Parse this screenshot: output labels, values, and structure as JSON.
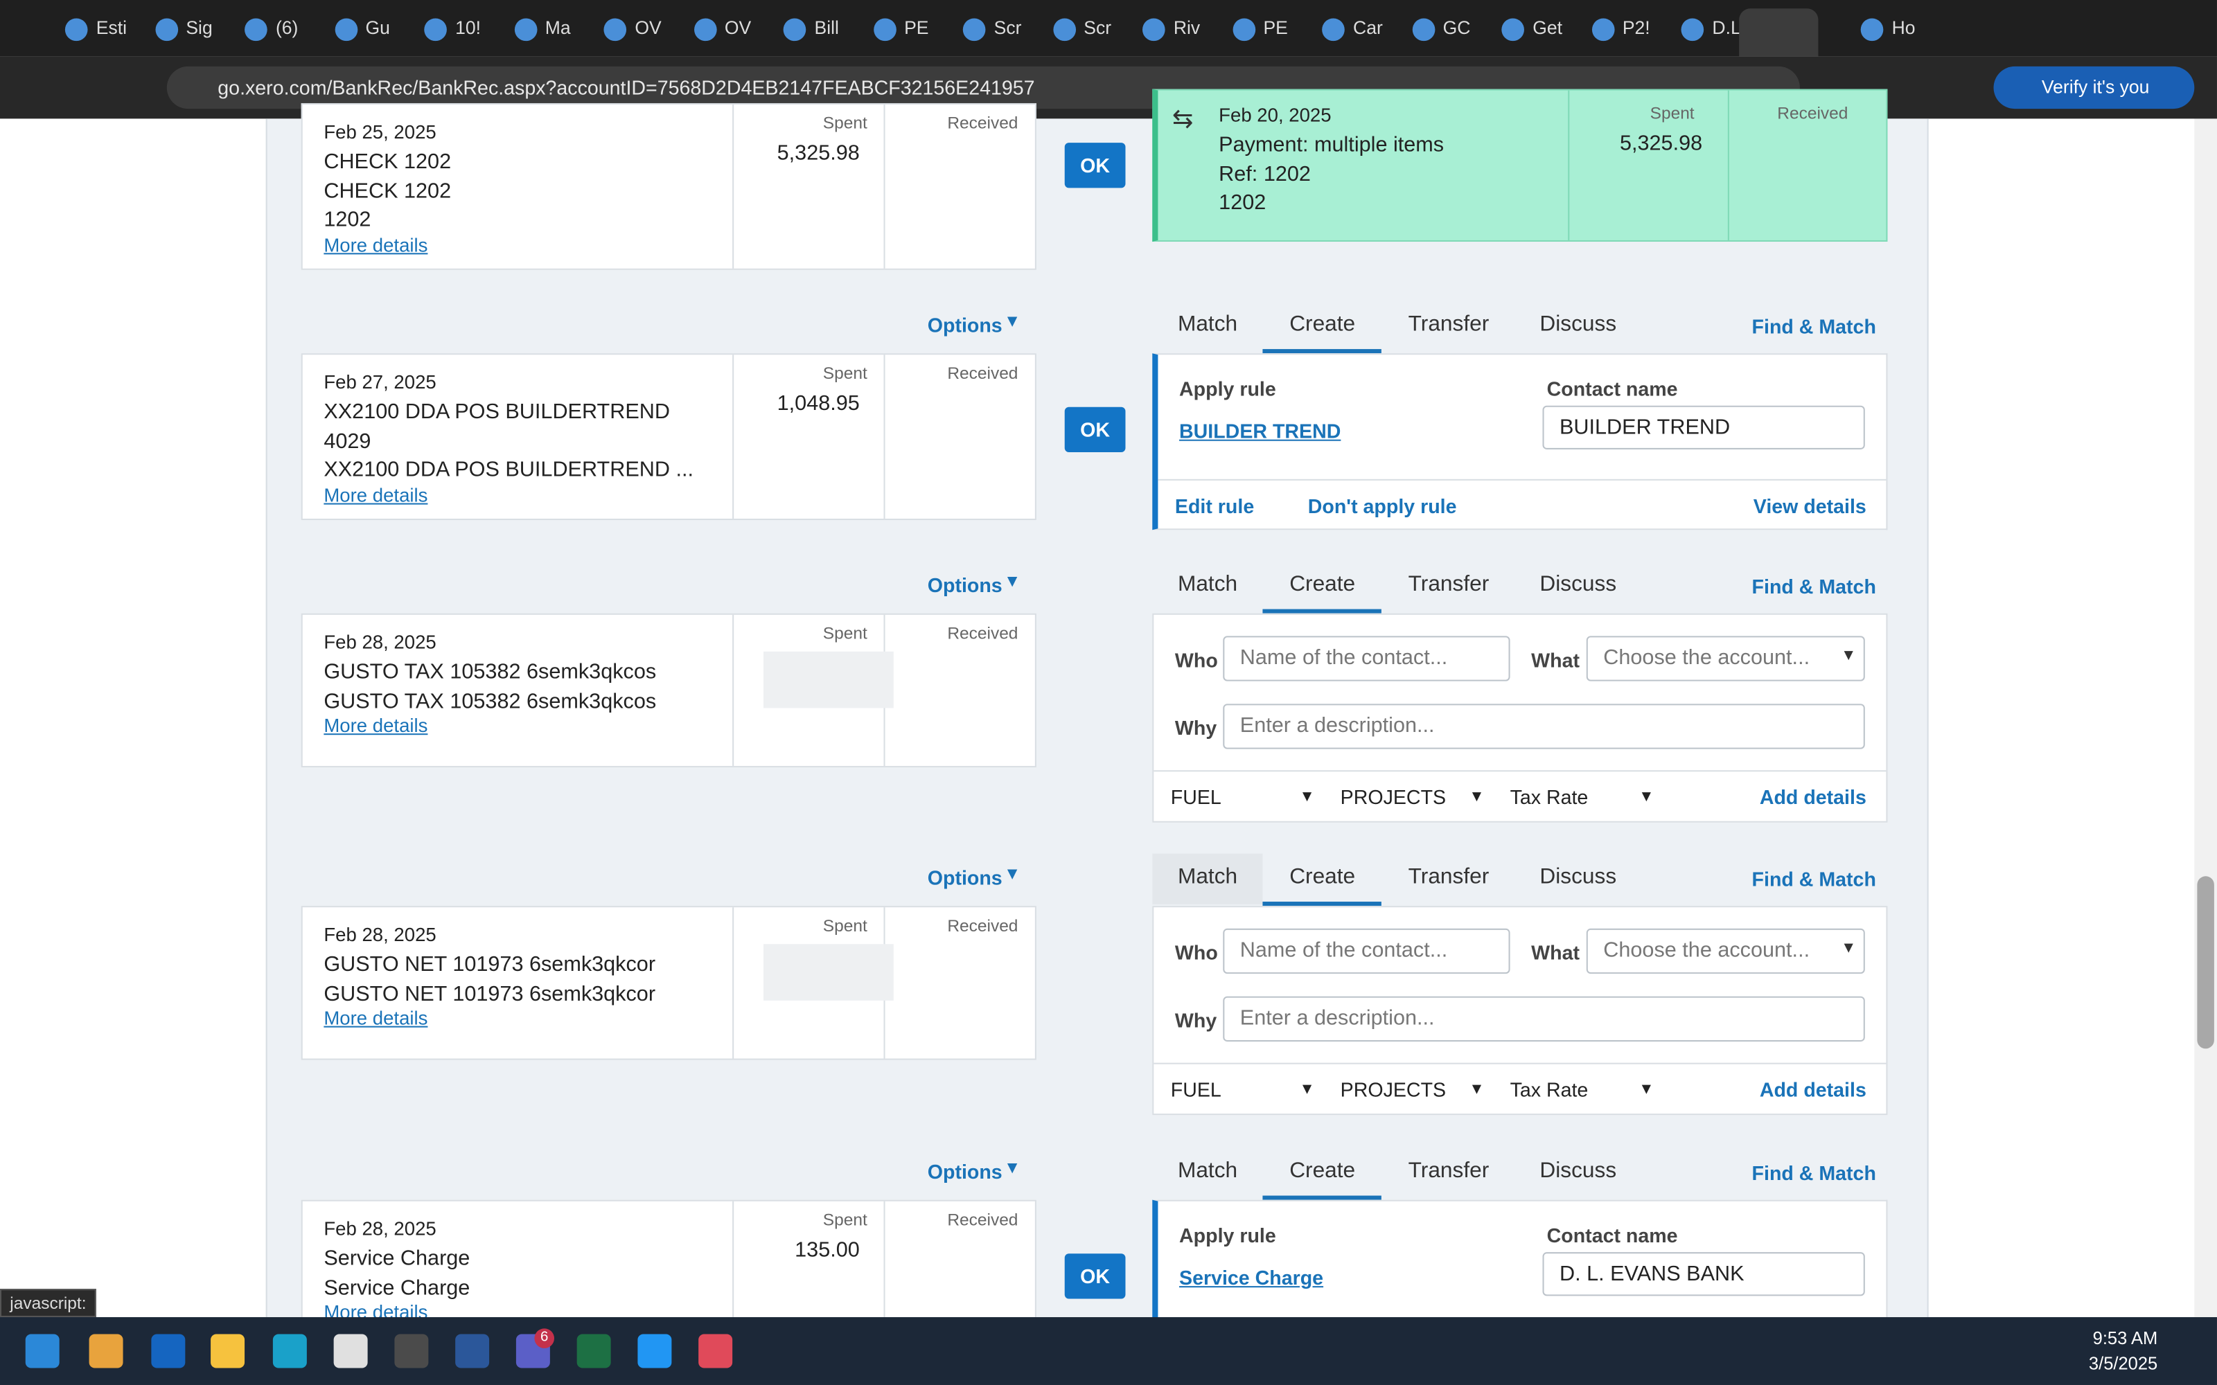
{
  "browser": {
    "tabs": [
      "Esti",
      "Sig",
      "(6)",
      "Gu",
      "10!",
      "Ma",
      "OV",
      "OV",
      "Bill",
      "PE",
      "Scr",
      "Scr",
      "Riv",
      "PE",
      "Car",
      "GC",
      "Get",
      "P2!",
      "D.L",
      "Ho"
    ],
    "url": "go.xero.com/BankRec/BankRec.aspx?accountID=7568D2D4EB2147FEABCF32156E241957",
    "profile": "Verify it's you",
    "status": "javascript:"
  },
  "labels": {
    "spent": "Spent",
    "received": "Received",
    "ok": "OK",
    "options": "Options",
    "more": "More details",
    "tabs": [
      "Match",
      "Create",
      "Transfer",
      "Discuss"
    ],
    "find": "Find & Match",
    "apply_rule": "Apply rule",
    "contact_name": "Contact name",
    "edit_rule": "Edit rule",
    "dont_apply": "Don't apply rule",
    "view_details": "View details",
    "who": "Who",
    "what": "What",
    "why": "Why",
    "who_ph": "Name of the contact...",
    "what_ph": "Choose the account...",
    "why_ph": "Enter a description...",
    "fuel": "FUEL",
    "projects": "PROJECTS",
    "tax": "Tax Rate",
    "add_details": "Add details"
  },
  "rows": [
    {
      "date": "Feb 25, 2025",
      "lines": [
        "CHECK 1202",
        "CHECK 1202",
        "1202"
      ],
      "spent": "5,325.98",
      "match": {
        "date": "Feb 20, 2025",
        "lines": [
          "Payment: multiple items",
          "Ref: 1202",
          "1202"
        ],
        "spent": "5,325.98"
      }
    },
    {
      "date": "Feb 27, 2025",
      "lines": [
        "XX2100 DDA POS BUILDERTREND",
        "4029",
        "XX2100 DDA POS BUILDERTREND ..."
      ],
      "spent": "1,048.95",
      "rule": "BUILDER TREND",
      "contact": "BUILDER TREND"
    },
    {
      "date": "Feb 28, 2025",
      "lines": [
        "GUSTO TAX 105382 6semk3qkcos",
        "GUSTO TAX 105382 6semk3qkcos"
      ]
    },
    {
      "date": "Feb 28, 2025",
      "lines": [
        "GUSTO NET 101973 6semk3qkcor",
        "GUSTO NET 101973 6semk3qkcor"
      ]
    },
    {
      "date": "Feb 28, 2025",
      "lines": [
        "Service Charge",
        "Service Charge"
      ],
      "spent": "135.00",
      "rule": "Service Charge",
      "contact": "D. L. EVANS BANK"
    }
  ],
  "taskbar": {
    "time": "9:53 AM",
    "date": "3/5/2025",
    "badge": "6"
  }
}
